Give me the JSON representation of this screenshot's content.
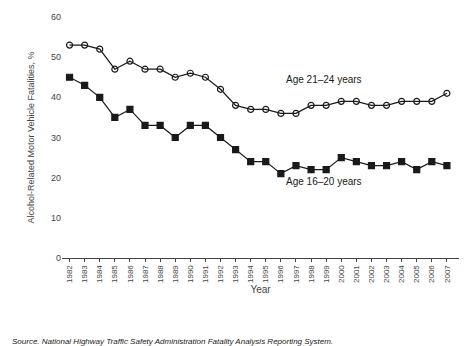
{
  "chart_data": {
    "type": "line",
    "xlabel": "Year",
    "ylabel": "Alcohol-Related Motor Vehicle Fatalities, %",
    "x": [
      1982,
      1983,
      1984,
      1985,
      1986,
      1987,
      1988,
      1989,
      1990,
      1991,
      1992,
      1993,
      1994,
      1995,
      1996,
      1997,
      1998,
      1999,
      2000,
      2001,
      2002,
      2003,
      2004,
      2005,
      2006,
      2007
    ],
    "series": [
      {
        "color": "#1a1a1a",
        "marker": "circle-open",
        "values": [
          53,
          53,
          52,
          47,
          49,
          47,
          47,
          45,
          46,
          45,
          42,
          38,
          37,
          37,
          36,
          36,
          38,
          38,
          39,
          39,
          38,
          38,
          39,
          39,
          39,
          41
        ]
      },
      {
        "color": "#1a1a1a",
        "marker": "square",
        "values": [
          45,
          43,
          40,
          35,
          37,
          33,
          33,
          30,
          33,
          33,
          30,
          27,
          24,
          24,
          21,
          23,
          22,
          22,
          25,
          24,
          23,
          23,
          24,
          22,
          24,
          23
        ]
      }
    ],
    "annotations": [
      {
        "text": "Age 21–24 years",
        "x": 1996.2,
        "y": 44.5
      },
      {
        "text": "Age 16–20 years",
        "x": 1996.2,
        "y": 19.0
      }
    ],
    "source": "Source. National Highway Traffic Safety Administration Fatality Analysis Reporting System.",
    "xlim": [
      1981.5,
      2007.8
    ],
    "xticks": [
      1982,
      1983,
      1984,
      1985,
      1986,
      1987,
      1988,
      1989,
      1990,
      1991,
      1992,
      1993,
      1994,
      1995,
      1996,
      1997,
      1998,
      1999,
      2000,
      2001,
      2002,
      2003,
      2004,
      2005,
      2006,
      2007
    ],
    "ylim": [
      0,
      60
    ],
    "yticks": [
      0,
      10,
      20,
      30,
      40,
      50,
      60
    ],
    "grid": false
  }
}
